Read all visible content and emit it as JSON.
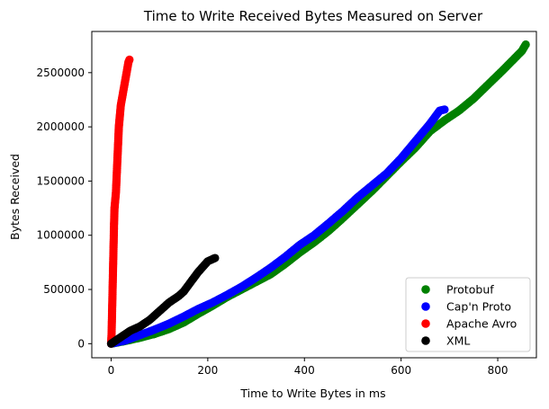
{
  "chart_data": {
    "type": "scatter",
    "title": "Time to Write Received Bytes Measured on Server",
    "xlabel": "Time to Write Bytes in ms",
    "ylabel": "Bytes Received",
    "xlim": [
      -40,
      880
    ],
    "ylim": [
      -130000,
      2880000
    ],
    "xticks": [
      0,
      200,
      400,
      600,
      800
    ],
    "yticks": [
      0,
      500000,
      1000000,
      1500000,
      2000000,
      2500000
    ],
    "xtick_labels": [
      "0",
      "200",
      "400",
      "600",
      "800"
    ],
    "ytick_labels": [
      "0",
      "500000",
      "1000000",
      "1500000",
      "2000000",
      "2500000"
    ],
    "grid": false,
    "legend_position": "lower-right",
    "series": [
      {
        "name": "Protobuf",
        "color": "#008000",
        "x": [
          0,
          30,
          60,
          90,
          120,
          150,
          180,
          210,
          240,
          270,
          300,
          330,
          360,
          390,
          420,
          450,
          480,
          510,
          540,
          570,
          600,
          630,
          660,
          690,
          720,
          750,
          780,
          810,
          830,
          850,
          858
        ],
        "y": [
          0,
          25000,
          55000,
          90000,
          135000,
          195000,
          275000,
          350000,
          430000,
          500000,
          570000,
          640000,
          735000,
          840000,
          935000,
          1040000,
          1160000,
          1285000,
          1410000,
          1545000,
          1680000,
          1810000,
          1960000,
          2060000,
          2150000,
          2260000,
          2390000,
          2520000,
          2610000,
          2700000,
          2760000
        ]
      },
      {
        "name": "Cap'n Proto",
        "color": "#0000ff",
        "x": [
          0,
          30,
          60,
          90,
          120,
          150,
          180,
          210,
          240,
          270,
          300,
          330,
          360,
          390,
          420,
          450,
          480,
          510,
          540,
          570,
          600,
          630,
          660,
          680,
          690
        ],
        "y": [
          0,
          30000,
          80000,
          130000,
          185000,
          250000,
          320000,
          380000,
          450000,
          525000,
          610000,
          700000,
          800000,
          910000,
          1000000,
          1110000,
          1225000,
          1350000,
          1460000,
          1570000,
          1710000,
          1870000,
          2030000,
          2150000,
          2160000
        ]
      },
      {
        "name": "Apache Avro",
        "color": "#ff0000",
        "x": [
          0,
          1,
          2,
          3,
          4,
          5,
          6,
          7,
          8,
          9,
          10,
          11,
          12,
          13,
          14,
          15,
          16,
          17,
          18,
          19,
          20,
          22,
          24,
          26,
          28,
          30,
          32,
          34,
          36,
          38
        ],
        "y": [
          0,
          100000,
          300000,
          500000,
          700000,
          900000,
          1100000,
          1250000,
          1300000,
          1350000,
          1400000,
          1500000,
          1600000,
          1700000,
          1800000,
          1900000,
          2000000,
          2050000,
          2100000,
          2150000,
          2200000,
          2250000,
          2300000,
          2350000,
          2400000,
          2450000,
          2500000,
          2550000,
          2600000,
          2620000
        ]
      },
      {
        "name": "XML",
        "color": "#000000",
        "x": [
          0,
          10,
          20,
          30,
          40,
          50,
          60,
          70,
          80,
          90,
          100,
          110,
          120,
          130,
          140,
          150,
          160,
          170,
          180,
          190,
          200,
          210,
          215
        ],
        "y": [
          0,
          30000,
          60000,
          90000,
          120000,
          140000,
          160000,
          190000,
          220000,
          260000,
          300000,
          340000,
          380000,
          410000,
          440000,
          480000,
          540000,
          600000,
          660000,
          710000,
          760000,
          780000,
          790000
        ]
      }
    ]
  }
}
